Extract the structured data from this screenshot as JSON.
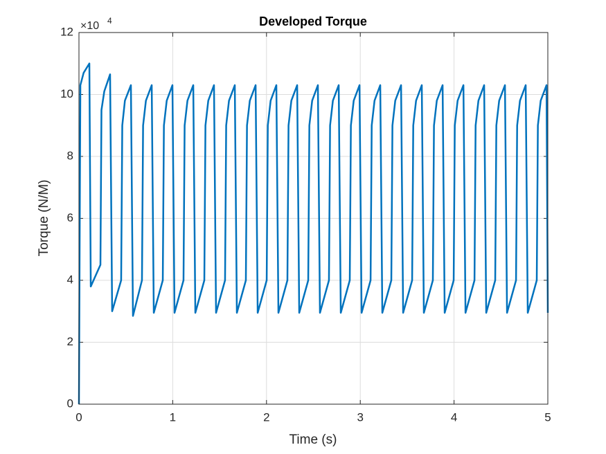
{
  "chart_data": {
    "type": "line",
    "title": "Developed Torque",
    "xlabel": "Time (s)",
    "ylabel": "Torque (N/M)",
    "y_multiplier": "×10",
    "y_exponent": 4,
    "color": "#0072bd",
    "grid": true,
    "xlim": [
      0,
      5
    ],
    "xticks": [
      0,
      1,
      2,
      3,
      4,
      5
    ],
    "ylim": [
      0,
      12
    ],
    "yticks": [
      0,
      2,
      4,
      6,
      8,
      10,
      12
    ],
    "x": [
      0,
      0.005,
      0.015,
      0.05,
      0.111,
      0.126,
      0.229,
      0.24,
      0.27,
      0.332,
      0.354,
      0.45,
      0.462,
      0.49,
      0.554,
      0.576,
      0.672,
      0.684,
      0.714,
      0.776,
      0.798,
      0.894,
      0.906,
      0.936,
      0.997,
      1.019,
      1.115,
      1.127,
      1.157,
      1.219,
      1.241,
      1.337,
      1.349,
      1.379,
      1.44,
      1.462,
      1.558,
      1.57,
      1.6,
      1.662,
      1.684,
      1.78,
      1.792,
      1.822,
      1.884,
      1.906,
      2.002,
      2.014,
      2.044,
      2.105,
      2.127,
      2.223,
      2.235,
      2.265,
      2.327,
      2.349,
      2.445,
      2.457,
      2.487,
      2.548,
      2.57,
      2.666,
      2.678,
      2.708,
      2.77,
      2.792,
      2.888,
      2.9,
      2.93,
      2.992,
      3.014,
      3.11,
      3.122,
      3.152,
      3.213,
      3.235,
      3.331,
      3.343,
      3.373,
      3.435,
      3.457,
      3.553,
      3.565,
      3.595,
      3.656,
      3.678,
      3.774,
      3.786,
      3.816,
      3.878,
      3.9,
      3.996,
      4.008,
      4.038,
      4.1,
      4.122,
      4.218,
      4.23,
      4.26,
      4.321,
      4.343,
      4.439,
      4.451,
      4.481,
      4.543,
      4.565,
      4.661,
      4.673,
      4.703,
      4.764,
      4.786,
      4.882,
      4.894,
      4.924,
      4.986,
      5.0
    ],
    "values": [
      0,
      3.5,
      10.3,
      10.7,
      11.0,
      3.8,
      4.5,
      9.5,
      10.1,
      10.65,
      3.0,
      4.0,
      9.0,
      9.8,
      10.3,
      2.85,
      4.0,
      9.0,
      9.8,
      10.3,
      2.95,
      4.0,
      9.0,
      9.8,
      10.3,
      2.95,
      4.0,
      9.0,
      9.8,
      10.3,
      2.95,
      4.0,
      9.0,
      9.8,
      10.3,
      2.95,
      4.0,
      9.0,
      9.8,
      10.3,
      2.95,
      4.0,
      9.0,
      9.8,
      10.3,
      2.95,
      4.0,
      9.0,
      9.8,
      10.3,
      2.95,
      4.0,
      9.0,
      9.8,
      10.3,
      2.95,
      4.0,
      9.0,
      9.8,
      10.3,
      2.95,
      4.0,
      9.0,
      9.8,
      10.3,
      2.95,
      4.0,
      9.0,
      9.8,
      10.3,
      2.95,
      4.0,
      9.0,
      9.8,
      10.3,
      2.95,
      4.0,
      9.0,
      9.8,
      10.3,
      2.95,
      4.0,
      9.0,
      9.8,
      10.3,
      2.95,
      4.0,
      9.0,
      9.8,
      10.3,
      2.95,
      4.0,
      9.0,
      9.8,
      10.3,
      2.95,
      4.0,
      9.0,
      9.8,
      10.3,
      2.95,
      4.0,
      9.0,
      9.8,
      10.3,
      2.95,
      4.0,
      9.0,
      9.8,
      10.3,
      2.95,
      4.0,
      9.0,
      9.8,
      10.3,
      2.95
    ]
  }
}
